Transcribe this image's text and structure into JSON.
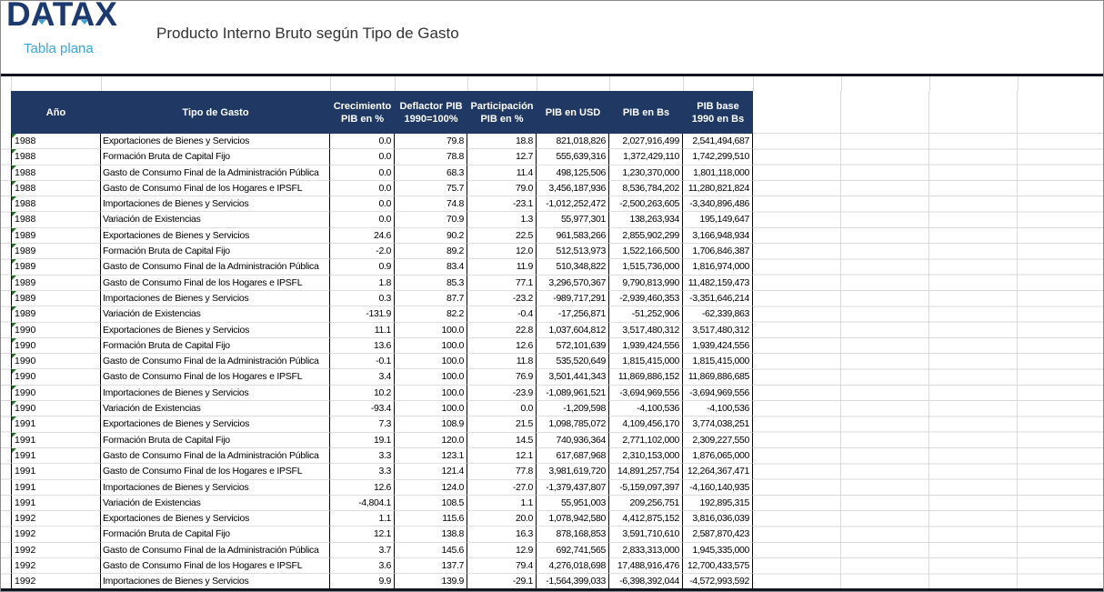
{
  "brand": {
    "logo": "DATAX",
    "tagline": "Tabla plana",
    "logo_color": "#1D3A70",
    "accent_blue": "#35A7DF"
  },
  "title": "Producto Interno Bruto según Tipo de Gasto",
  "colors": {
    "header_bg": "#1F3864",
    "header_text": "#FFFFFF",
    "flag_green": "#107C10",
    "gridline": "#D9D9D9",
    "cell_border": "#000000"
  },
  "icons": {
    "logo_triangle": "triangle-down",
    "error_flag": "green-corner-triangle"
  },
  "table": {
    "headers": [
      {
        "id": "ano",
        "label": "Año"
      },
      {
        "id": "tipo",
        "label": "Tipo de Gasto"
      },
      {
        "id": "crecimiento",
        "label": "Crecimiento\nPIB en %"
      },
      {
        "id": "deflactor",
        "label": "Deflactor PIB\n1990=100%"
      },
      {
        "id": "participacion",
        "label": "Participación\nPIB en %"
      },
      {
        "id": "pib_usd",
        "label": "PIB en USD"
      },
      {
        "id": "pib_bs",
        "label": "PIB en Bs"
      },
      {
        "id": "pib_base",
        "label": "PIB base\n1990 en Bs"
      }
    ],
    "green_flag_row_count": 21,
    "rows": [
      [
        "1988",
        "Exportaciones de Bienes y Servicios",
        "0.0",
        "79.8",
        "18.8",
        "821,018,826",
        "2,027,916,499",
        "2,541,494,687"
      ],
      [
        "1988",
        "Formación Bruta de Capital Fijo",
        "0.0",
        "78.8",
        "12.7",
        "555,639,316",
        "1,372,429,110",
        "1,742,299,510"
      ],
      [
        "1988",
        "Gasto de Consumo Final de la Administración Pública",
        "0.0",
        "68.3",
        "11.4",
        "498,125,506",
        "1,230,370,000",
        "1,801,118,000"
      ],
      [
        "1988",
        "Gasto de Consumo Final de los Hogares e IPSFL",
        "0.0",
        "75.7",
        "79.0",
        "3,456,187,936",
        "8,536,784,202",
        "11,280,821,824"
      ],
      [
        "1988",
        "Importaciones de Bienes y Servicios",
        "0.0",
        "74.8",
        "-23.1",
        "-1,012,252,472",
        "-2,500,263,605",
        "-3,340,896,486"
      ],
      [
        "1988",
        "Variación de Existencias",
        "0.0",
        "70.9",
        "1.3",
        "55,977,301",
        "138,263,934",
        "195,149,647"
      ],
      [
        "1989",
        "Exportaciones de Bienes y Servicios",
        "24.6",
        "90.2",
        "22.5",
        "961,583,266",
        "2,855,902,299",
        "3,166,948,934"
      ],
      [
        "1989",
        "Formación Bruta de Capital Fijo",
        "-2.0",
        "89.2",
        "12.0",
        "512,513,973",
        "1,522,166,500",
        "1,706,846,387"
      ],
      [
        "1989",
        "Gasto de Consumo Final de la Administración Pública",
        "0.9",
        "83.4",
        "11.9",
        "510,348,822",
        "1,515,736,000",
        "1,816,974,000"
      ],
      [
        "1989",
        "Gasto de Consumo Final de los Hogares e IPSFL",
        "1.8",
        "85.3",
        "77.1",
        "3,296,570,367",
        "9,790,813,990",
        "11,482,159,473"
      ],
      [
        "1989",
        "Importaciones de Bienes y Servicios",
        "0.3",
        "87.7",
        "-23.2",
        "-989,717,291",
        "-2,939,460,353",
        "-3,351,646,214"
      ],
      [
        "1989",
        "Variación de Existencias",
        "-131.9",
        "82.2",
        "-0.4",
        "-17,256,871",
        "-51,252,906",
        "-62,339,863"
      ],
      [
        "1990",
        "Exportaciones de Bienes y Servicios",
        "11.1",
        "100.0",
        "22.8",
        "1,037,604,812",
        "3,517,480,312",
        "3,517,480,312"
      ],
      [
        "1990",
        "Formación Bruta de Capital Fijo",
        "13.6",
        "100.0",
        "12.6",
        "572,101,639",
        "1,939,424,556",
        "1,939,424,556"
      ],
      [
        "1990",
        "Gasto de Consumo Final de la Administración Pública",
        "-0.1",
        "100.0",
        "11.8",
        "535,520,649",
        "1,815,415,000",
        "1,815,415,000"
      ],
      [
        "1990",
        "Gasto de Consumo Final de los Hogares e IPSFL",
        "3.4",
        "100.0",
        "76.9",
        "3,501,441,343",
        "11,869,886,152",
        "11,869,886,685"
      ],
      [
        "1990",
        "Importaciones de Bienes y Servicios",
        "10.2",
        "100.0",
        "-23.9",
        "-1,089,961,521",
        "-3,694,969,556",
        "-3,694,969,556"
      ],
      [
        "1990",
        "Variación de Existencias",
        "-93.4",
        "100.0",
        "0.0",
        "-1,209,598",
        "-4,100,536",
        "-4,100,536"
      ],
      [
        "1991",
        "Exportaciones de Bienes y Servicios",
        "7.3",
        "108.9",
        "21.5",
        "1,098,785,072",
        "4,109,456,170",
        "3,774,038,251"
      ],
      [
        "1991",
        "Formación Bruta de Capital Fijo",
        "19.1",
        "120.0",
        "14.5",
        "740,936,364",
        "2,771,102,000",
        "2,309,227,550"
      ],
      [
        "1991",
        "Gasto de Consumo Final de la Administración Pública",
        "3.3",
        "123.1",
        "12.1",
        "617,687,968",
        "2,310,153,000",
        "1,876,065,000"
      ],
      [
        "1991",
        "Gasto de Consumo Final de los Hogares e IPSFL",
        "3.3",
        "121.4",
        "77.8",
        "3,981,619,720",
        "14,891,257,754",
        "12,264,367,471"
      ],
      [
        "1991",
        "Importaciones de Bienes y Servicios",
        "12.6",
        "124.0",
        "-27.0",
        "-1,379,437,807",
        "-5,159,097,397",
        "-4,160,140,935"
      ],
      [
        "1991",
        "Variación de Existencias",
        "-4,804.1",
        "108.5",
        "1.1",
        "55,951,003",
        "209,256,751",
        "192,895,315"
      ],
      [
        "1992",
        "Exportaciones de Bienes y Servicios",
        "1.1",
        "115.6",
        "20.0",
        "1,078,942,580",
        "4,412,875,152",
        "3,816,036,039"
      ],
      [
        "1992",
        "Formación Bruta de Capital Fijo",
        "12.1",
        "138.8",
        "16.3",
        "878,168,853",
        "3,591,710,610",
        "2,587,870,423"
      ],
      [
        "1992",
        "Gasto de Consumo Final de la Administración Pública",
        "3.7",
        "145.6",
        "12.9",
        "692,741,565",
        "2,833,313,000",
        "1,945,335,000"
      ],
      [
        "1992",
        "Gasto de Consumo Final de los Hogares e IPSFL",
        "3.6",
        "137.7",
        "79.4",
        "4,276,018,698",
        "17,488,916,476",
        "12,700,433,575"
      ],
      [
        "1992",
        "Importaciones de Bienes y Servicios",
        "9.9",
        "139.9",
        "-29.1",
        "-1,564,399,033",
        "-6,398,392,044",
        "-4,572,993,592"
      ]
    ]
  }
}
